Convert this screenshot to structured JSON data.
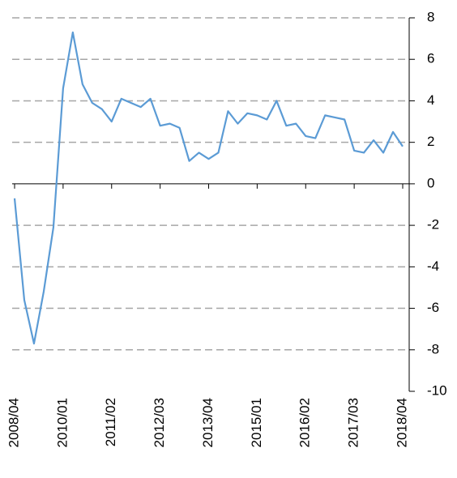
{
  "chart_data": {
    "type": "line",
    "categories": [
      "2008/04",
      null,
      null,
      null,
      null,
      "2010/01",
      null,
      null,
      null,
      null,
      "2011/02",
      null,
      null,
      null,
      null,
      "2012/03",
      null,
      null,
      null,
      null,
      "2013/04",
      null,
      null,
      null,
      null,
      "2015/01",
      null,
      null,
      null,
      null,
      "2016/02",
      null,
      null,
      null,
      null,
      "2017/03",
      null,
      null,
      null,
      null,
      "2018/04"
    ],
    "series": [
      {
        "color": "#5b9bd5",
        "values": [
          -0.7,
          -5.6,
          -7.7,
          -5.2,
          -2.1,
          4.6,
          7.3,
          4.8,
          3.9,
          3.6,
          3.0,
          4.1,
          3.9,
          3.7,
          4.1,
          2.8,
          2.9,
          2.7,
          1.1,
          1.5,
          1.2,
          1.5,
          3.5,
          2.9,
          3.4,
          3.3,
          3.1,
          4.0,
          2.8,
          2.9,
          2.3,
          2.2,
          3.3,
          3.2,
          3.1,
          1.6,
          1.5,
          2.1,
          1.5,
          2.5,
          1.8
        ]
      }
    ],
    "ylim": [
      -10,
      8
    ],
    "yticks": [
      -10,
      -8,
      -6,
      -4,
      -2,
      0,
      2,
      4,
      6,
      8
    ],
    "grid": true
  }
}
